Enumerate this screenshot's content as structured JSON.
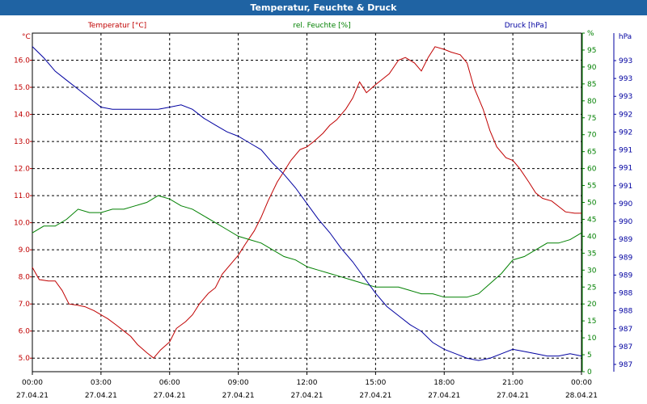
{
  "window": {
    "title": "Temperatur, Feuchte & Druck"
  },
  "chart_data": {
    "type": "line",
    "title": "Temperatur, Feuchte & Druck",
    "grid": true,
    "x_ticks": [
      {
        "t": 0,
        "time": "00:00",
        "date": "27.04.21"
      },
      {
        "t": 3,
        "time": "03:00",
        "date": "27.04.21"
      },
      {
        "t": 6,
        "time": "06:00",
        "date": "27.04.21"
      },
      {
        "t": 9,
        "time": "09:00",
        "date": "27.04.21"
      },
      {
        "t": 12,
        "time": "12:00",
        "date": "27.04.21"
      },
      {
        "t": 15,
        "time": "15:00",
        "date": "27.04.21"
      },
      {
        "t": 18,
        "time": "18:00",
        "date": "27.04.21"
      },
      {
        "t": 21,
        "time": "21:00",
        "date": "27.04.21"
      },
      {
        "t": 24,
        "time": "00:00",
        "date": "28.04.21"
      }
    ],
    "axes": {
      "temperature": {
        "series_label": "Temperatur [°C]",
        "unit": "°C",
        "range": [
          4.5,
          17.0
        ],
        "ticks": [
          "5.0",
          "6.0",
          "7.0",
          "8.0",
          "9.0",
          "10.0",
          "11.0",
          "12.0",
          "13.0",
          "14.0",
          "15.0",
          "16.0"
        ],
        "color": "#c00000"
      },
      "humidity": {
        "series_label": "rel. Feuchte [%]",
        "unit": "%",
        "range": [
          0,
          100
        ],
        "ticks": [
          "0",
          "5",
          "10",
          "15",
          "20",
          "25",
          "30",
          "35",
          "40",
          "45",
          "50",
          "55",
          "60",
          "65",
          "70",
          "75",
          "80",
          "85",
          "90",
          "95",
          "%"
        ],
        "color": "#008000"
      },
      "pressure": {
        "series_label": "Druck [hPa]",
        "unit": "hPa",
        "ticks": [
          "987",
          "987",
          "987",
          "988",
          "988",
          "989",
          "989",
          "989",
          "990",
          "990",
          "991",
          "991",
          "991",
          "992",
          "992",
          "993",
          "993",
          "993"
        ],
        "color": "#0000a0"
      }
    },
    "series": [
      {
        "name": "Temperatur [°C]",
        "axis": "temperature",
        "color": "#c00000",
        "x": [
          0,
          0.3,
          0.7,
          1,
          1.3,
          1.6,
          2,
          2.3,
          2.7,
          3,
          3.3,
          3.7,
          4,
          4.3,
          4.6,
          5,
          5.3,
          5.6,
          6,
          6.3,
          6.7,
          7,
          7.3,
          7.7,
          8,
          8.3,
          8.7,
          9,
          9.3,
          9.7,
          10,
          10.3,
          10.7,
          11,
          11.3,
          11.7,
          12,
          12.3,
          12.7,
          13,
          13.3,
          13.7,
          14,
          14.3,
          14.6,
          15,
          15.3,
          15.6,
          16,
          16.3,
          16.7,
          17,
          17.3,
          17.6,
          18,
          18.3,
          18.7,
          19,
          19.3,
          19.7,
          20,
          20.3,
          20.7,
          21,
          21.3,
          21.7,
          22,
          22.3,
          22.7,
          23,
          23.3,
          23.7,
          24
        ],
        "y": [
          8.35,
          7.9,
          7.85,
          7.85,
          7.5,
          7.0,
          6.95,
          6.9,
          6.75,
          6.6,
          6.45,
          6.2,
          6.0,
          5.8,
          5.5,
          5.2,
          5.0,
          5.3,
          5.6,
          6.1,
          6.35,
          6.6,
          7.0,
          7.4,
          7.6,
          8.1,
          8.5,
          8.8,
          9.2,
          9.7,
          10.2,
          10.8,
          11.5,
          11.9,
          12.3,
          12.7,
          12.8,
          13.0,
          13.3,
          13.6,
          13.8,
          14.2,
          14.6,
          15.2,
          14.8,
          15.1,
          15.3,
          15.5,
          16.0,
          16.1,
          15.9,
          15.6,
          16.1,
          16.5,
          16.4,
          16.3,
          16.2,
          15.9,
          15.0,
          14.2,
          13.4,
          12.8,
          12.4,
          12.3,
          12.0,
          11.5,
          11.1,
          10.9,
          10.8,
          10.6,
          10.4,
          10.35,
          10.35
        ]
      },
      {
        "name": "rel. Feuchte [%]",
        "axis": "humidity",
        "color": "#008000",
        "x": [
          0,
          0.5,
          1,
          1.5,
          2,
          2.5,
          3,
          3.5,
          4,
          4.5,
          5,
          5.5,
          6,
          6.5,
          7,
          7.5,
          8,
          8.5,
          9,
          9.5,
          10,
          10.5,
          11,
          11.5,
          12,
          12.5,
          13,
          13.5,
          14,
          14.5,
          15,
          15.5,
          16,
          16.5,
          17,
          17.5,
          18,
          18.5,
          19,
          19.5,
          20,
          20.5,
          21,
          21.5,
          22,
          22.5,
          23,
          23.5,
          24
        ],
        "y": [
          41,
          43,
          43,
          45,
          48,
          47,
          47,
          48,
          48,
          49,
          50,
          52,
          51,
          49,
          48,
          46,
          44,
          42,
          40,
          39,
          38,
          36,
          34,
          33,
          31,
          30,
          29,
          28,
          27,
          26,
          25,
          25,
          25,
          24,
          23,
          23,
          22,
          22,
          22,
          23,
          26,
          29,
          33,
          34,
          36,
          38,
          38,
          39,
          41
        ]
      },
      {
        "name": "Druck [hPa]",
        "axis": "pressure",
        "color": "#0000a0",
        "x": [
          0,
          0.5,
          1,
          1.5,
          2,
          2.5,
          3,
          3.5,
          4,
          4.5,
          5,
          5.5,
          6,
          6.5,
          7,
          7.5,
          8,
          8.5,
          9,
          9.5,
          10,
          10.5,
          11,
          11.5,
          12,
          12.5,
          13,
          13.5,
          14,
          14.5,
          15,
          15.5,
          16,
          16.5,
          17,
          17.5,
          18,
          18.5,
          19,
          19.5,
          20,
          20.5,
          21,
          21.5,
          22,
          22.5,
          23,
          23.5,
          24
        ],
        "y": [
          993.6,
          993.35,
          993.05,
          992.85,
          992.65,
          992.45,
          992.25,
          992.2,
          992.2,
          992.2,
          992.2,
          992.2,
          992.25,
          992.3,
          992.2,
          992.0,
          991.85,
          991.7,
          991.6,
          991.45,
          991.3,
          991.0,
          990.75,
          990.45,
          990.1,
          989.75,
          989.45,
          989.1,
          988.8,
          988.45,
          988.1,
          987.8,
          987.6,
          987.4,
          987.25,
          987.0,
          986.85,
          986.75,
          986.65,
          986.6,
          986.65,
          986.75,
          986.85,
          986.8,
          986.75,
          986.7,
          986.7,
          986.75,
          986.7
        ]
      }
    ]
  }
}
